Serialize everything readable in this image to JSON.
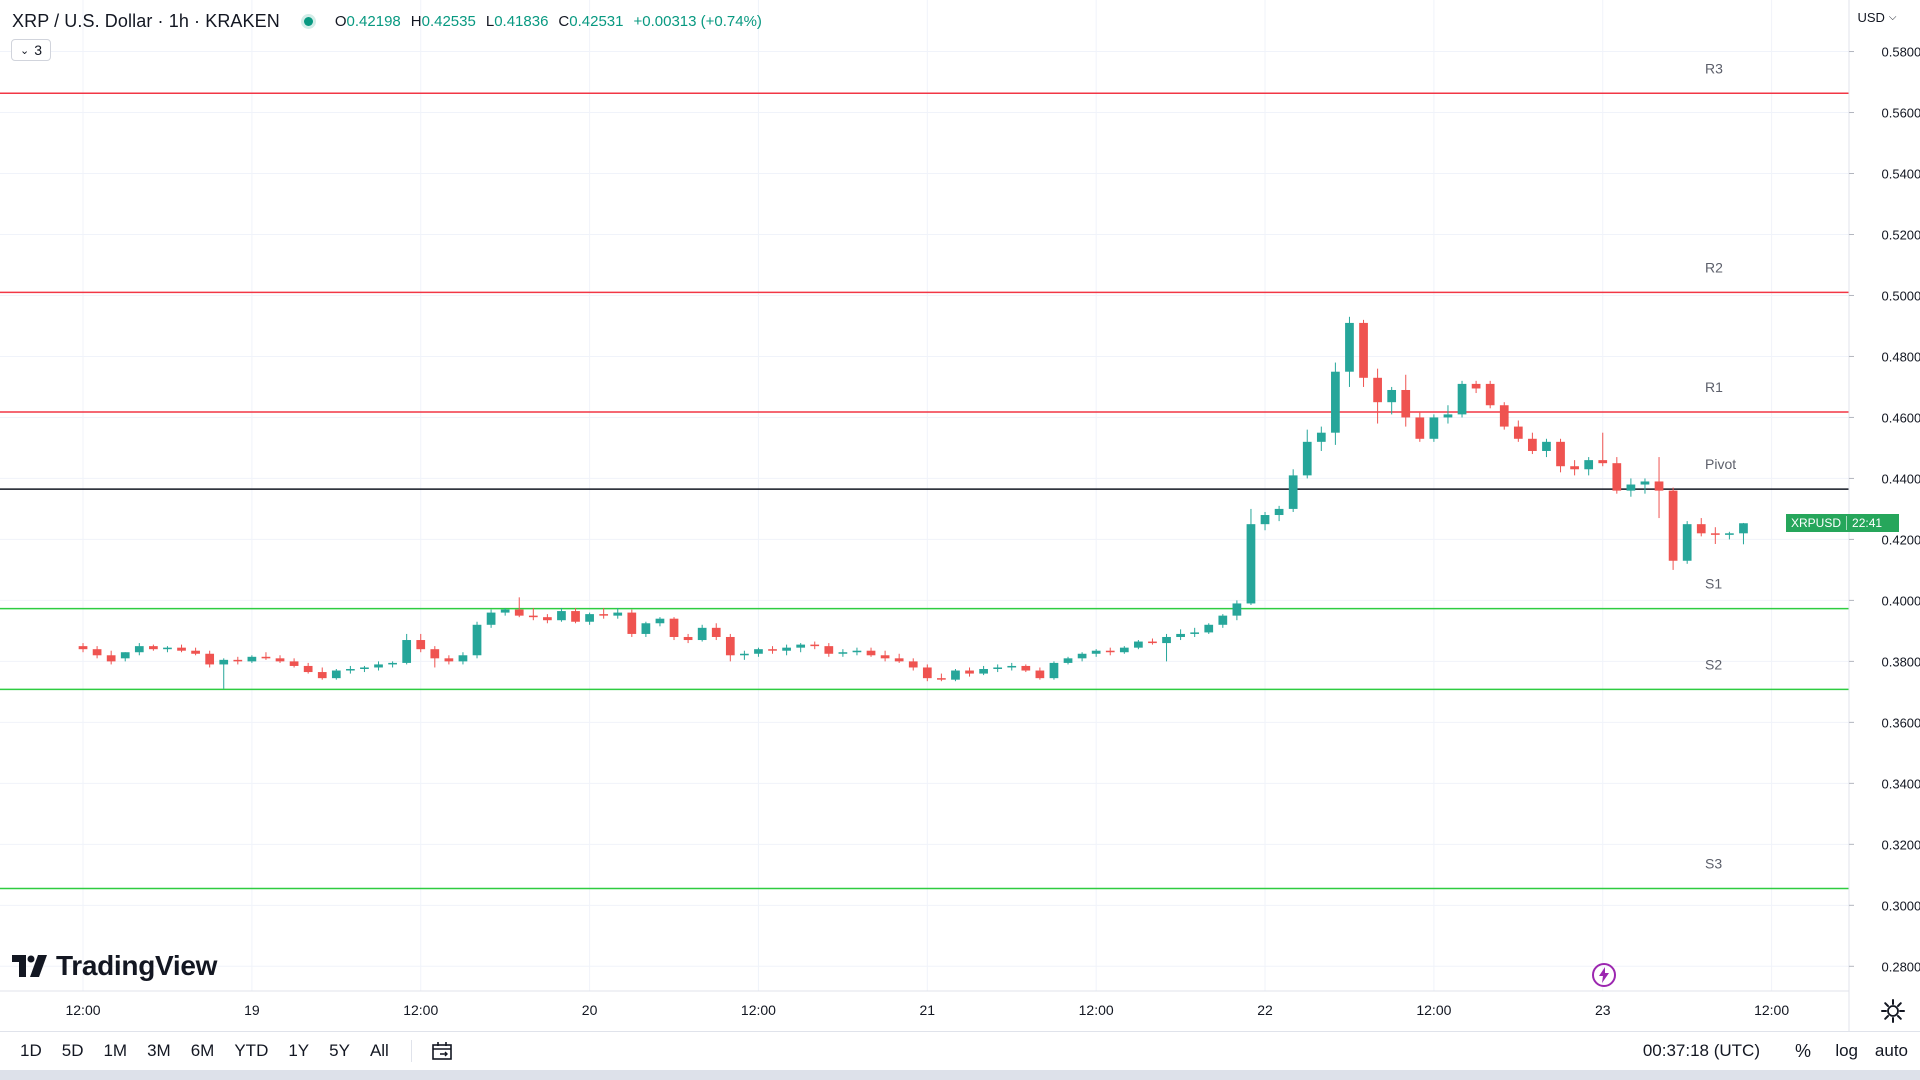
{
  "header": {
    "title": "XRP / U.S. Dollar · 1h · KRAKEN",
    "status_color": "#089981",
    "ohlc": [
      {
        "key": "O",
        "value": "0.42198"
      },
      {
        "key": "H",
        "value": "0.42535"
      },
      {
        "key": "L",
        "value": "0.41836"
      },
      {
        "key": "C",
        "value": "0.42531"
      }
    ],
    "change": "+0.00313 (+0.74%)"
  },
  "indicator_badge": "3",
  "currency": "USD",
  "ticker_tag": {
    "symbol": "XRPUSD",
    "countdown": "22:41"
  },
  "logo_text": "TradingView",
  "bottom_bar": {
    "ranges": [
      "1D",
      "5D",
      "1M",
      "3M",
      "6M",
      "YTD",
      "1Y",
      "5Y",
      "All"
    ],
    "clock": "00:37:18 (UTC)",
    "percent": "%",
    "log": "log",
    "auto": "auto"
  },
  "icons": [
    "calendar-range-icon",
    "settings-gear-icon",
    "lightning-icon",
    "chevron-down-icon"
  ],
  "chart_data": {
    "type": "candlestick",
    "x_unit": "hour",
    "y_unit": "USD",
    "x_tick_labels": [
      {
        "label": "12:00",
        "hour": 0
      },
      {
        "label": "19",
        "hour": 12
      },
      {
        "label": "12:00",
        "hour": 24
      },
      {
        "label": "20",
        "hour": 36
      },
      {
        "label": "12:00",
        "hour": 48
      },
      {
        "label": "21",
        "hour": 60
      },
      {
        "label": "12:00",
        "hour": 72
      },
      {
        "label": "22",
        "hour": 84
      },
      {
        "label": "12:00",
        "hour": 96
      },
      {
        "label": "23",
        "hour": 108
      },
      {
        "label": "12:00",
        "hour": 120
      }
    ],
    "y_ticks": [
      "0.28000",
      "0.30000",
      "0.32000",
      "0.34000",
      "0.36000",
      "0.38000",
      "0.40000",
      "0.42000",
      "0.44000",
      "0.46000",
      "0.48000",
      "0.50000",
      "0.52000",
      "0.54000",
      "0.56000",
      "0.58000"
    ],
    "ylim": [
      0.2719,
      0.5969
    ],
    "xlim": [
      -5.9,
      125.5
    ],
    "current_price": 0.42531,
    "colors": {
      "up": "#26a69a",
      "down": "#ef5350",
      "resistance": "#f23645",
      "support": "#2ecc40",
      "pivot": "#131722"
    },
    "levels": [
      {
        "label": "R3",
        "value": 0.5663,
        "kind": "resistance"
      },
      {
        "label": "R2",
        "value": 0.501,
        "kind": "resistance"
      },
      {
        "label": "R1",
        "value": 0.4618,
        "kind": "resistance"
      },
      {
        "label": "Pivot",
        "value": 0.4365,
        "kind": "pivot"
      },
      {
        "label": "S1",
        "value": 0.3973,
        "kind": "support"
      },
      {
        "label": "S2",
        "value": 0.3708,
        "kind": "support"
      },
      {
        "label": "S3",
        "value": 0.3055,
        "kind": "support"
      }
    ],
    "candles": [
      [
        0.385,
        0.386,
        0.383,
        0.384
      ],
      [
        0.384,
        0.385,
        0.381,
        0.382
      ],
      [
        0.382,
        0.3835,
        0.379,
        0.38
      ],
      [
        0.381,
        0.383,
        0.38,
        0.383
      ],
      [
        0.383,
        0.386,
        0.382,
        0.385
      ],
      [
        0.385,
        0.3855,
        0.3835,
        0.384
      ],
      [
        0.384,
        0.385,
        0.383,
        0.3845
      ],
      [
        0.3845,
        0.3855,
        0.383,
        0.3835
      ],
      [
        0.3835,
        0.3845,
        0.382,
        0.3825
      ],
      [
        0.3825,
        0.3835,
        0.378,
        0.379
      ],
      [
        0.379,
        0.381,
        0.371,
        0.3805
      ],
      [
        0.3805,
        0.3815,
        0.379,
        0.38
      ],
      [
        0.38,
        0.382,
        0.3795,
        0.3815
      ],
      [
        0.3815,
        0.383,
        0.3805,
        0.381
      ],
      [
        0.381,
        0.382,
        0.3795,
        0.38
      ],
      [
        0.38,
        0.381,
        0.378,
        0.3785
      ],
      [
        0.3785,
        0.3795,
        0.376,
        0.3765
      ],
      [
        0.3765,
        0.378,
        0.374,
        0.3745
      ],
      [
        0.3745,
        0.3775,
        0.374,
        0.377
      ],
      [
        0.377,
        0.3785,
        0.376,
        0.3775
      ],
      [
        0.3775,
        0.3785,
        0.3765,
        0.378
      ],
      [
        0.378,
        0.38,
        0.377,
        0.379
      ],
      [
        0.379,
        0.38,
        0.378,
        0.3795
      ],
      [
        0.3795,
        0.389,
        0.379,
        0.387
      ],
      [
        0.387,
        0.389,
        0.383,
        0.384
      ],
      [
        0.384,
        0.385,
        0.378,
        0.381
      ],
      [
        0.381,
        0.382,
        0.379,
        0.38
      ],
      [
        0.38,
        0.383,
        0.379,
        0.382
      ],
      [
        0.382,
        0.393,
        0.381,
        0.392
      ],
      [
        0.392,
        0.397,
        0.391,
        0.396
      ],
      [
        0.396,
        0.3975,
        0.395,
        0.397
      ],
      [
        0.397,
        0.401,
        0.3945,
        0.395
      ],
      [
        0.395,
        0.3975,
        0.3935,
        0.3945
      ],
      [
        0.3945,
        0.3955,
        0.3925,
        0.3935
      ],
      [
        0.3935,
        0.3975,
        0.393,
        0.3965
      ],
      [
        0.3965,
        0.3975,
        0.3925,
        0.393
      ],
      [
        0.393,
        0.396,
        0.392,
        0.3955
      ],
      [
        0.3955,
        0.3975,
        0.394,
        0.395
      ],
      [
        0.395,
        0.3975,
        0.394,
        0.396
      ],
      [
        0.396,
        0.397,
        0.388,
        0.389
      ],
      [
        0.389,
        0.393,
        0.388,
        0.3925
      ],
      [
        0.3925,
        0.3945,
        0.3915,
        0.394
      ],
      [
        0.394,
        0.3945,
        0.387,
        0.388
      ],
      [
        0.388,
        0.389,
        0.386,
        0.387
      ],
      [
        0.387,
        0.392,
        0.3865,
        0.391
      ],
      [
        0.391,
        0.3925,
        0.387,
        0.388
      ],
      [
        0.388,
        0.389,
        0.38,
        0.382
      ],
      [
        0.382,
        0.3835,
        0.3805,
        0.3825
      ],
      [
        0.3825,
        0.3845,
        0.3815,
        0.384
      ],
      [
        0.384,
        0.385,
        0.3825,
        0.3835
      ],
      [
        0.3835,
        0.3855,
        0.382,
        0.3845
      ],
      [
        0.3845,
        0.386,
        0.383,
        0.3855
      ],
      [
        0.3855,
        0.3865,
        0.384,
        0.385
      ],
      [
        0.385,
        0.386,
        0.3815,
        0.3825
      ],
      [
        0.3825,
        0.384,
        0.3815,
        0.383
      ],
      [
        0.383,
        0.3845,
        0.382,
        0.3835
      ],
      [
        0.3835,
        0.3845,
        0.3815,
        0.382
      ],
      [
        0.382,
        0.3835,
        0.38,
        0.381
      ],
      [
        0.381,
        0.3825,
        0.3795,
        0.38
      ],
      [
        0.38,
        0.381,
        0.377,
        0.378
      ],
      [
        0.378,
        0.379,
        0.3735,
        0.3745
      ],
      [
        0.3745,
        0.376,
        0.3735,
        0.374
      ],
      [
        0.374,
        0.3775,
        0.3735,
        0.377
      ],
      [
        0.377,
        0.378,
        0.375,
        0.376
      ],
      [
        0.376,
        0.3785,
        0.3755,
        0.3775
      ],
      [
        0.3775,
        0.379,
        0.3765,
        0.378
      ],
      [
        0.378,
        0.3795,
        0.377,
        0.3785
      ],
      [
        0.3785,
        0.379,
        0.3765,
        0.377
      ],
      [
        0.377,
        0.378,
        0.374,
        0.3745
      ],
      [
        0.3745,
        0.38,
        0.374,
        0.3795
      ],
      [
        0.3795,
        0.3815,
        0.379,
        0.381
      ],
      [
        0.381,
        0.383,
        0.38,
        0.3825
      ],
      [
        0.3825,
        0.384,
        0.3815,
        0.3835
      ],
      [
        0.3835,
        0.3845,
        0.382,
        0.383
      ],
      [
        0.383,
        0.385,
        0.3825,
        0.3845
      ],
      [
        0.3845,
        0.387,
        0.384,
        0.3865
      ],
      [
        0.3865,
        0.3875,
        0.3855,
        0.386
      ],
      [
        0.386,
        0.389,
        0.38,
        0.388
      ],
      [
        0.388,
        0.3905,
        0.387,
        0.389
      ],
      [
        0.389,
        0.391,
        0.388,
        0.3895
      ],
      [
        0.3895,
        0.3925,
        0.389,
        0.392
      ],
      [
        0.392,
        0.3955,
        0.391,
        0.395
      ],
      [
        0.395,
        0.4,
        0.3935,
        0.399
      ],
      [
        0.399,
        0.43,
        0.3985,
        0.425
      ],
      [
        0.425,
        0.429,
        0.423,
        0.428
      ],
      [
        0.428,
        0.431,
        0.426,
        0.43
      ],
      [
        0.43,
        0.443,
        0.429,
        0.441
      ],
      [
        0.441,
        0.456,
        0.44,
        0.452
      ],
      [
        0.452,
        0.457,
        0.449,
        0.455
      ],
      [
        0.455,
        0.478,
        0.451,
        0.475
      ],
      [
        0.475,
        0.493,
        0.47,
        0.491
      ],
      [
        0.491,
        0.492,
        0.47,
        0.473
      ],
      [
        0.473,
        0.476,
        0.458,
        0.465
      ],
      [
        0.465,
        0.47,
        0.461,
        0.469
      ],
      [
        0.469,
        0.474,
        0.457,
        0.46
      ],
      [
        0.46,
        0.462,
        0.452,
        0.453
      ],
      [
        0.453,
        0.461,
        0.452,
        0.46
      ],
      [
        0.46,
        0.464,
        0.458,
        0.461
      ],
      [
        0.461,
        0.472,
        0.46,
        0.471
      ],
      [
        0.471,
        0.472,
        0.468,
        0.4695
      ],
      [
        0.471,
        0.472,
        0.463,
        0.464
      ],
      [
        0.464,
        0.465,
        0.456,
        0.457
      ],
      [
        0.457,
        0.459,
        0.452,
        0.453
      ],
      [
        0.453,
        0.455,
        0.448,
        0.449
      ],
      [
        0.449,
        0.453,
        0.447,
        0.452
      ],
      [
        0.452,
        0.453,
        0.442,
        0.444
      ],
      [
        0.444,
        0.446,
        0.441,
        0.443
      ],
      [
        0.443,
        0.447,
        0.441,
        0.446
      ],
      [
        0.446,
        0.455,
        0.444,
        0.445
      ],
      [
        0.445,
        0.447,
        0.435,
        0.436
      ],
      [
        0.436,
        0.44,
        0.434,
        0.438
      ],
      [
        0.438,
        0.44,
        0.435,
        0.439
      ],
      [
        0.439,
        0.447,
        0.427,
        0.436
      ],
      [
        0.436,
        0.437,
        0.41,
        0.413
      ],
      [
        0.413,
        0.426,
        0.412,
        0.425
      ],
      [
        0.425,
        0.427,
        0.421,
        0.422
      ],
      [
        0.422,
        0.424,
        0.4185,
        0.4215
      ],
      [
        0.4215,
        0.4225,
        0.42,
        0.422
      ],
      [
        0.422,
        0.4254,
        0.4184,
        0.4253
      ]
    ]
  }
}
